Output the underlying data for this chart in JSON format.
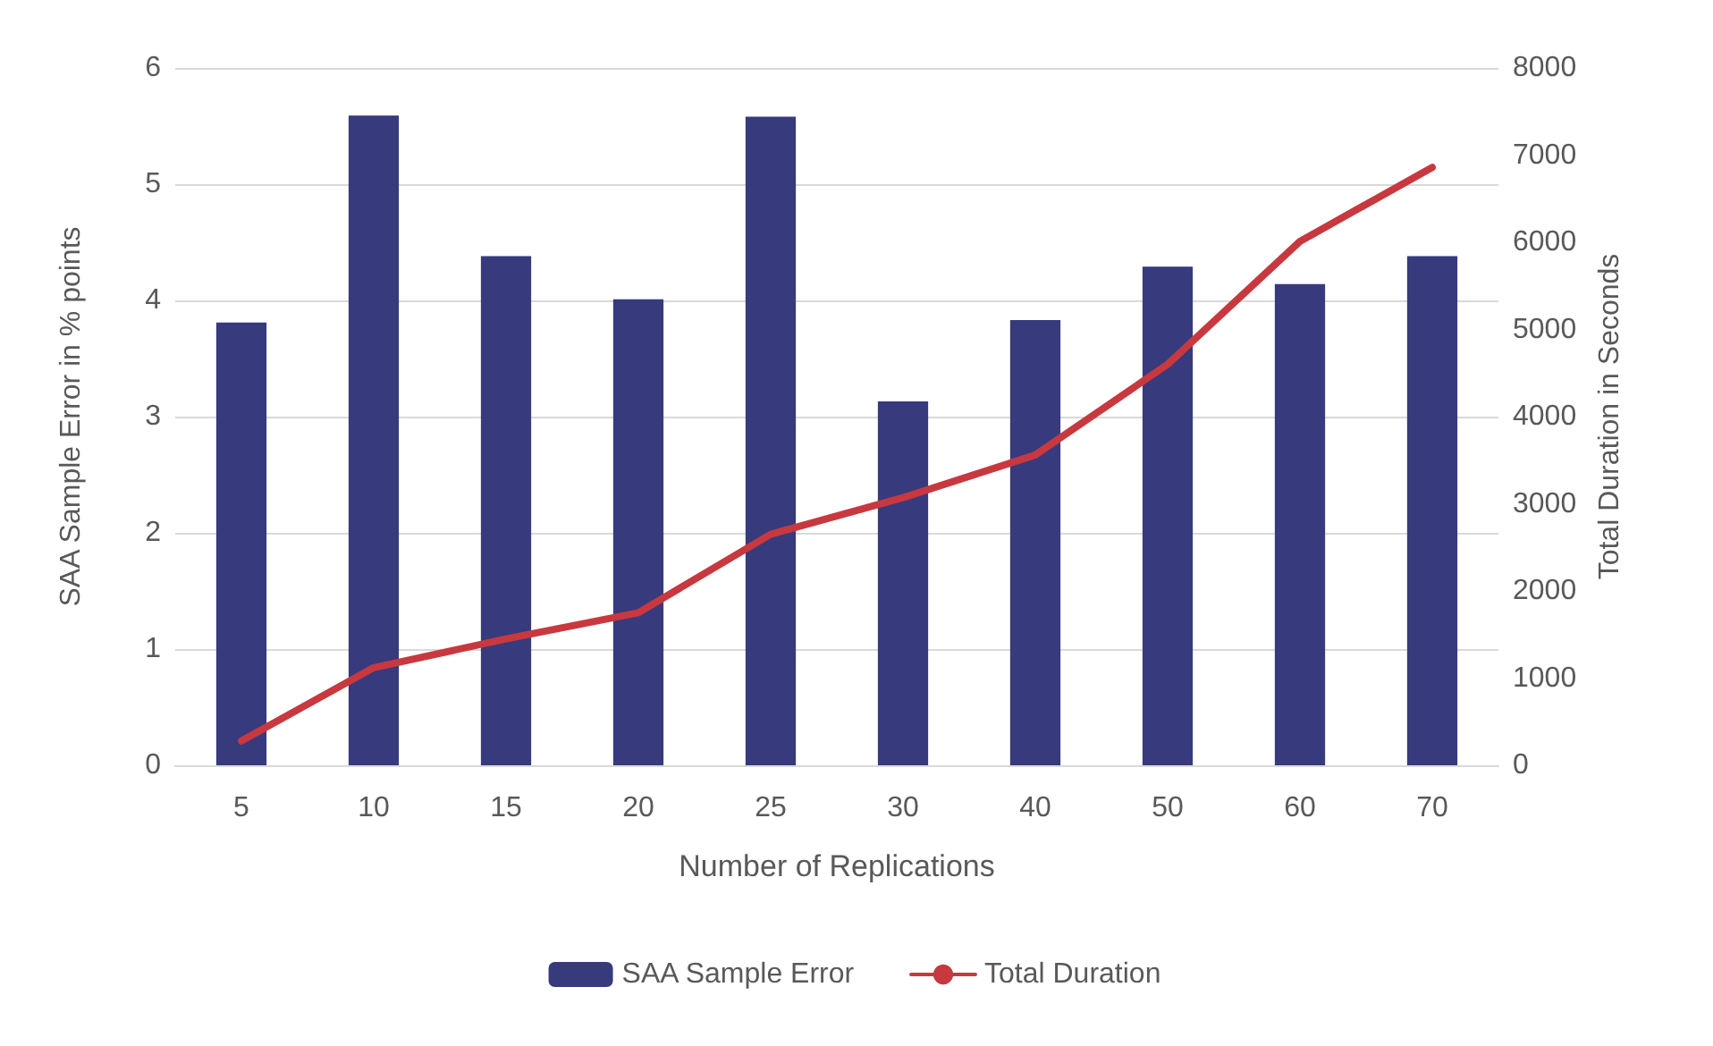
{
  "chart_data": {
    "type": "bar",
    "xlabel": "Number of Replications",
    "ylabel": "SAA Sample Error in % points",
    "y2label": "Total Duration in Seconds",
    "categories": [
      "5",
      "10",
      "15",
      "20",
      "25",
      "30",
      "40",
      "50",
      "60",
      "70"
    ],
    "series": [
      {
        "name": "SAA Sample Error",
        "color": "#373a7d",
        "values": [
          3.81,
          5.59,
          4.38,
          4.01,
          5.58,
          3.13,
          3.83,
          4.29,
          4.14,
          4.38
        ]
      },
      {
        "name": "Total Duration",
        "type": "line",
        "axis": "y2",
        "color": "#c8383f",
        "marker": "none",
        "values": [
          280,
          1120,
          1450,
          1750,
          2650,
          3070,
          3560,
          4600,
          6010,
          6860
        ]
      }
    ],
    "ylim": [
      0,
      6
    ],
    "yticks": [
      0,
      1,
      2,
      3,
      4,
      5,
      6
    ],
    "y2lim": [
      0,
      8000
    ],
    "y2ticks": [
      0,
      1000,
      2000,
      3000,
      4000,
      5000,
      6000,
      7000,
      8000
    ],
    "grid": "y",
    "legend": "bottom"
  }
}
